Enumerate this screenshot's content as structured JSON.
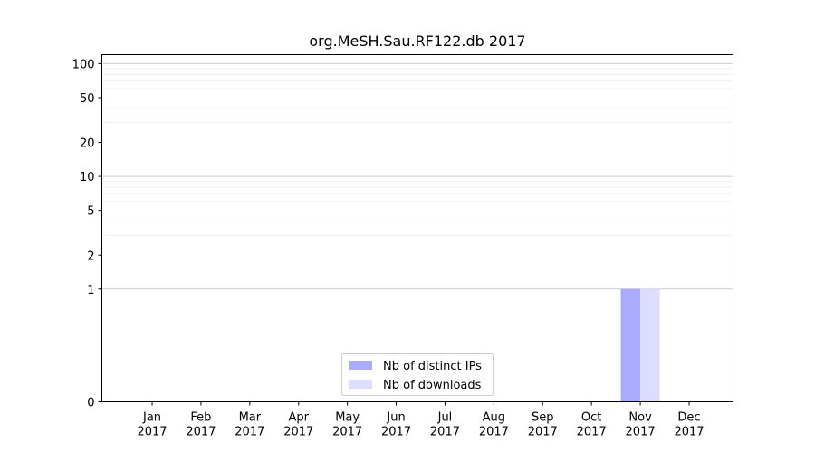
{
  "chart_data": {
    "type": "bar",
    "title": "org.MeSH.Sau.RF122.db 2017",
    "xlabel": "",
    "ylabel": "",
    "y_scale": "symlog",
    "ylim": [
      0,
      120
    ],
    "y_ticks": [
      0,
      1,
      2,
      5,
      10,
      20,
      50,
      100
    ],
    "y_tick_labels": [
      "0",
      "1",
      "2",
      "5",
      "10",
      "20",
      "50",
      "100"
    ],
    "categories": [
      "Jan\n2017",
      "Feb\n2017",
      "Mar\n2017",
      "Apr\n2017",
      "May\n2017",
      "Jun\n2017",
      "Jul\n2017",
      "Aug\n2017",
      "Sep\n2017",
      "Oct\n2017",
      "Nov\n2017",
      "Dec\n2017"
    ],
    "series": [
      {
        "name": "Nb of distinct IPs",
        "color": "#aaaaff",
        "values": [
          0,
          0,
          0,
          0,
          0,
          0,
          0,
          0,
          0,
          0,
          1,
          0
        ]
      },
      {
        "name": "Nb of downloads",
        "color": "#ddddff",
        "values": [
          0,
          0,
          0,
          0,
          0,
          0,
          0,
          0,
          0,
          0,
          1,
          0
        ]
      }
    ],
    "grid": true,
    "legend_position": "bottom-center"
  }
}
